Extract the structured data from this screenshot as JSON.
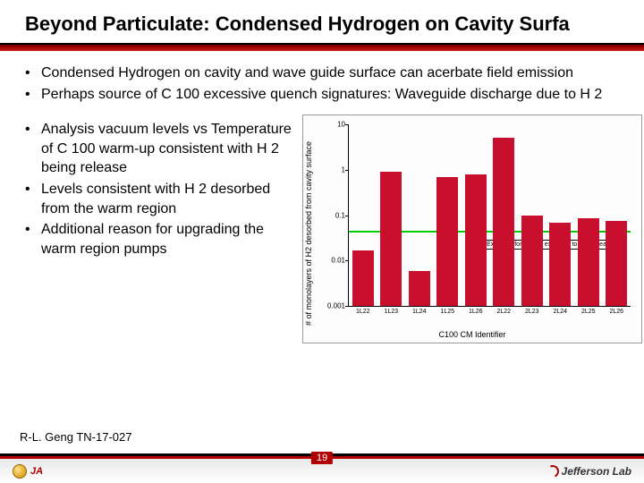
{
  "title": "Beyond Particulate: Condensed Hydrogen on Cavity Surfa",
  "bullets_top": [
    "Condensed Hydrogen on cavity and wave guide surface  can acerbate field emission",
    "Perhaps source of C 100 excessive quench signatures: Waveguide discharge due to H 2"
  ],
  "bullets_side": [
    "Analysis vacuum levels vs Temperature of C 100 warm-up consistent with H 2 being release",
    "Levels consistent with H 2 desorbed from the warm region",
    "Additional reason for upgrading the warm region pumps"
  ],
  "citation": "R-L. Geng TN-17-027",
  "page_number": "19",
  "footer_left": "JA",
  "footer_right": "Jefferson Lab",
  "chart": {
    "type": "bar",
    "ylabel": "# of monolayers of H2 desorbed from cavity surface",
    "xlabel": "C100 CM Identifier",
    "categories": [
      "1L22",
      "1L23",
      "1L24",
      "1L25",
      "1L26",
      "2L22",
      "2L23",
      "2L24",
      "2L25",
      "2L26"
    ],
    "values": [
      0.017,
      0.9,
      0.006,
      0.7,
      0.8,
      5.0,
      0.1,
      0.07,
      0.085,
      0.075
    ],
    "bar_color": "#c8102e",
    "background_color": "#fdfdfd",
    "yscale": "log",
    "ylim_min": 0.001,
    "ylim_max": 10,
    "yticks": [
      0.001,
      0.01,
      0.1,
      1,
      10
    ],
    "ytick_labels": [
      "0.001",
      "0.01",
      "0.1",
      "1",
      "10"
    ],
    "ref_line_value": 0.045,
    "ref_line_color": "#00d000",
    "ref_label": "Expected for 60-day exposure to warm beamline",
    "title_fontsize": 22,
    "label_fontsize": 9,
    "tick_fontsize": 8
  }
}
